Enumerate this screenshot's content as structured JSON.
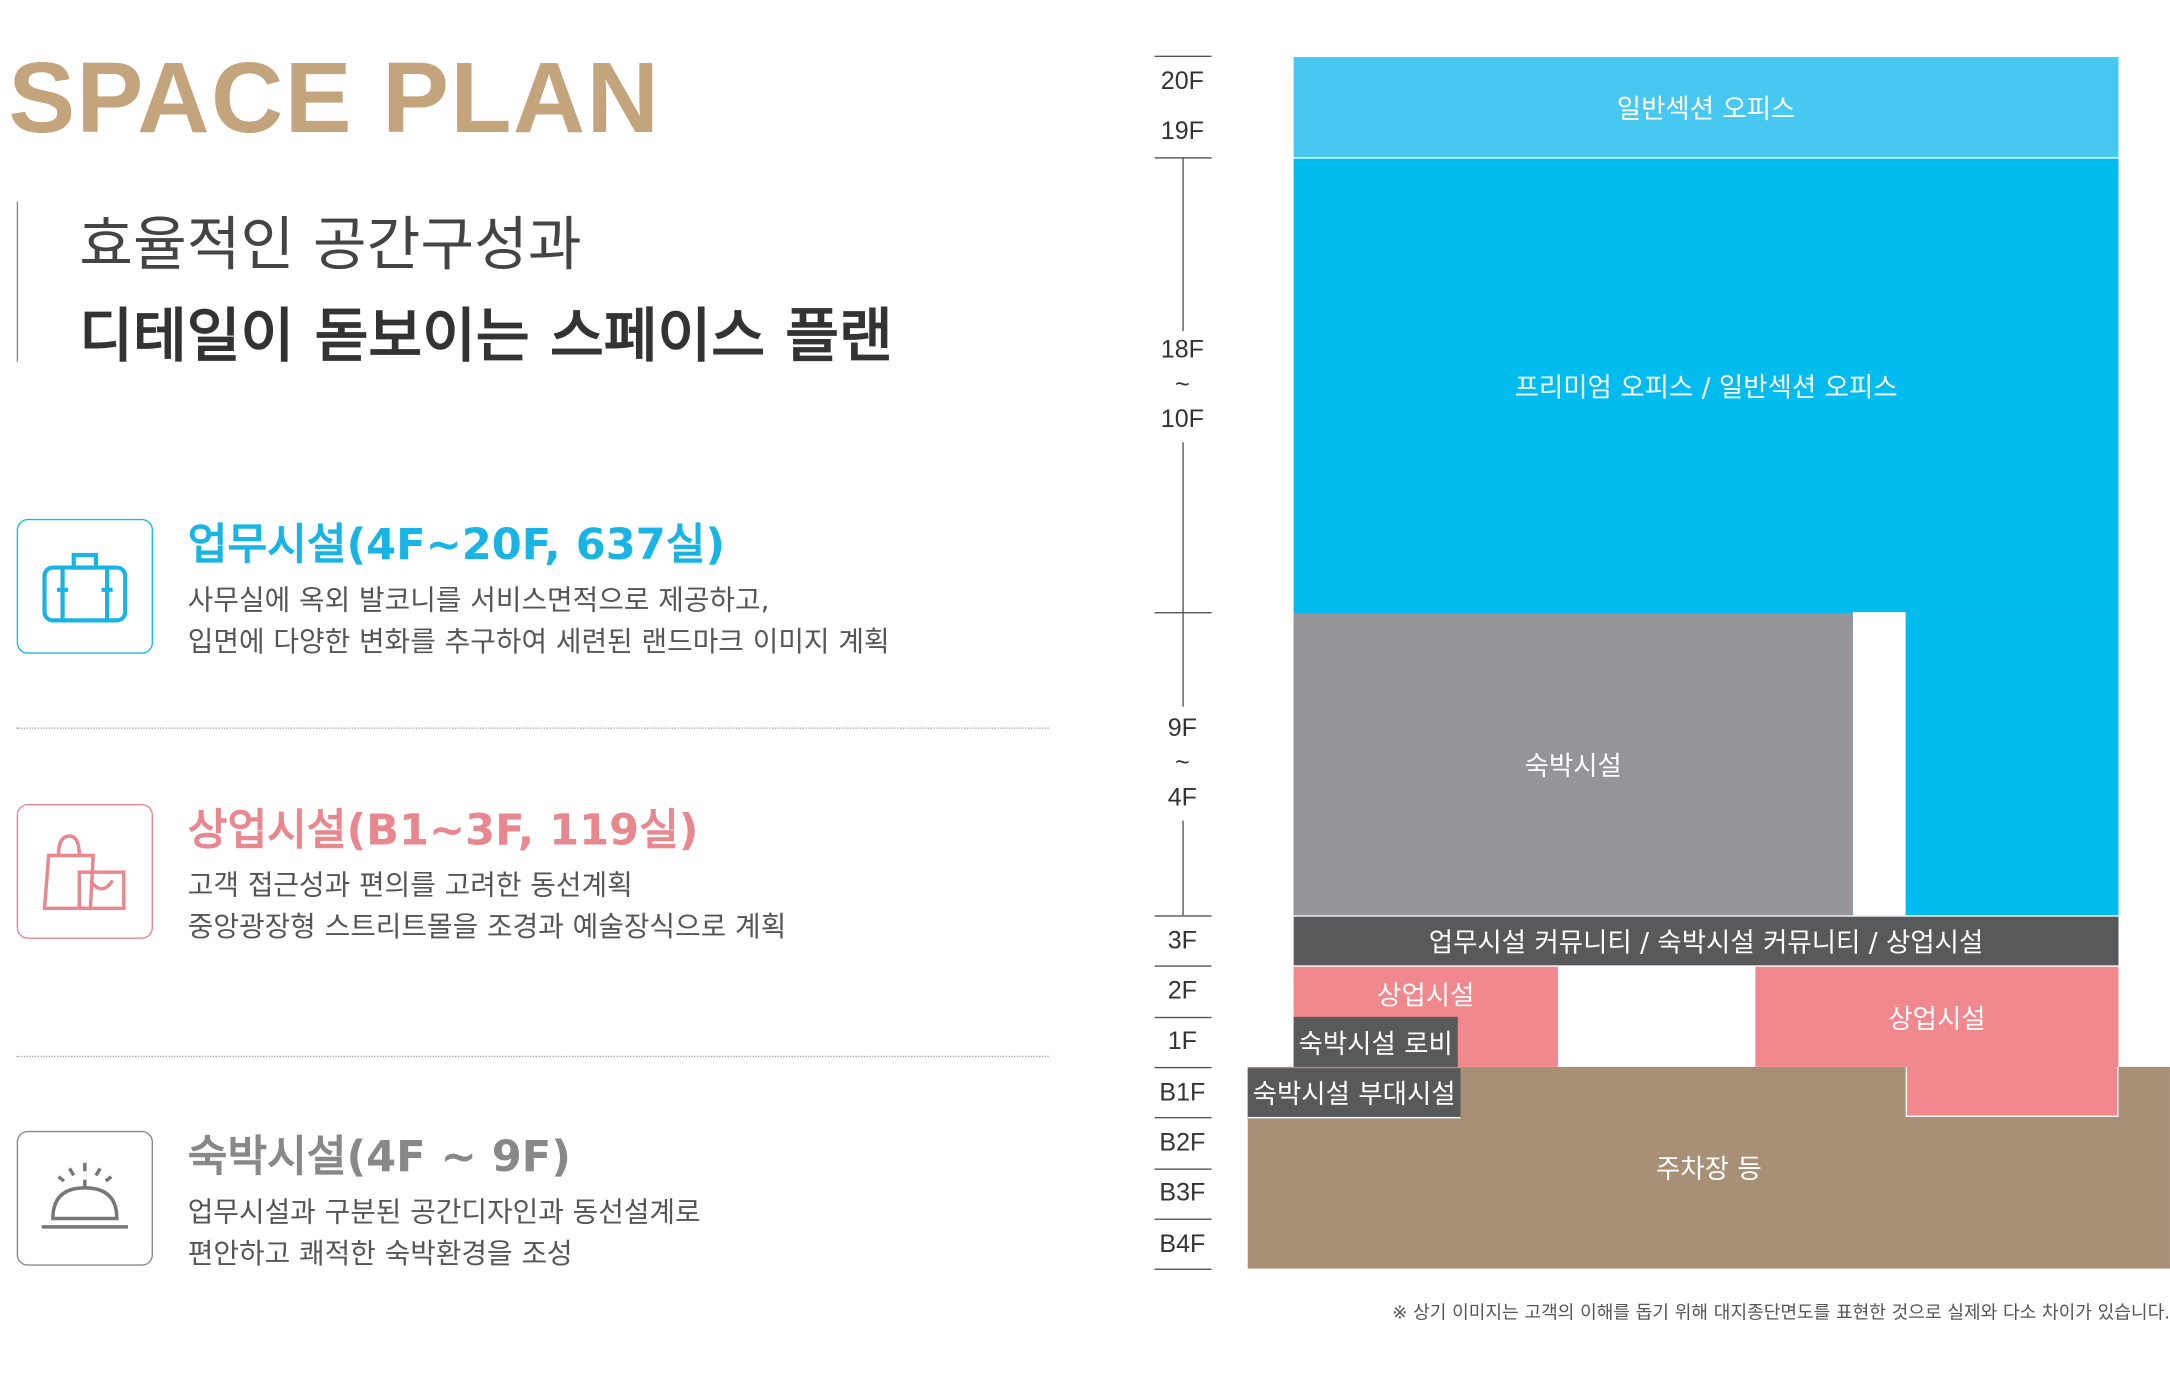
{
  "header": {
    "title": "SPACE PLAN",
    "subtitle_line1": "효율적인 공간구성과",
    "subtitle_line2": "디테일이 돋보이는 스페이스 플랜"
  },
  "sections": [
    {
      "title": "업무시설(4F~20F, 637실)",
      "lines": [
        "사무실에 옥외 발코니를 서비스면적으로 제공하고,",
        "입면에 다양한 변화를 추구하여 세련된 랜드마크 이미지 계획"
      ],
      "color": "#1ab4e4",
      "icon": "briefcase-icon"
    },
    {
      "title": "상업시설(B1~3F, 119실)",
      "lines": [
        "고객 접근성과 편의를 고려한 동선계획",
        "중앙광장형 스트리트몰을 조경과 예술장식으로 계획"
      ],
      "color": "#e8888e",
      "icon": "shopping-bag-icon"
    },
    {
      "title": "숙박시설(4F ~ 9F)",
      "lines": [
        "업무시설과 구분된 공간디자인과 동선설계로",
        "편안하고 쾌적한 숙박환경을 조성"
      ],
      "color": "#888888",
      "icon": "service-bell-icon"
    }
  ],
  "floors": {
    "f20": "20F",
    "f19": "19F",
    "f18": "18F",
    "tilde": "~",
    "f10": "10F",
    "f9": "9F",
    "f4": "4F",
    "f3": "3F",
    "f2": "2F",
    "f1": "1F",
    "b1": "B1F",
    "b2": "B2F",
    "b3": "B3F",
    "b4": "B4F"
  },
  "blocks": {
    "general_office": "일반섹션 오피스",
    "premium_office": "프리미엄 오피스 / 일반섹션 오피스",
    "lodging": "숙박시설",
    "community": "업무시설 커뮤니티 / 숙박시설 커뮤니티 / 상업시설",
    "commercial_left": "상업시설",
    "commercial_right": "상업시설",
    "lodging_lobby": "숙박시설 로비",
    "lodging_annex": "숙박시설 부대시설",
    "parking": "주차장 등"
  },
  "colors": {
    "office_top": "#47c8f0",
    "office": "#00bbee",
    "lodging": "#939598",
    "dark": "#58595b",
    "commercial": "#f1888d",
    "parking": "#a89077"
  },
  "footnote": "※ 상기 이미지는 고객의 이해를 돕기 위해 대지종단면도를 표현한 것으로 실제와 다소 차이가 있습니다."
}
